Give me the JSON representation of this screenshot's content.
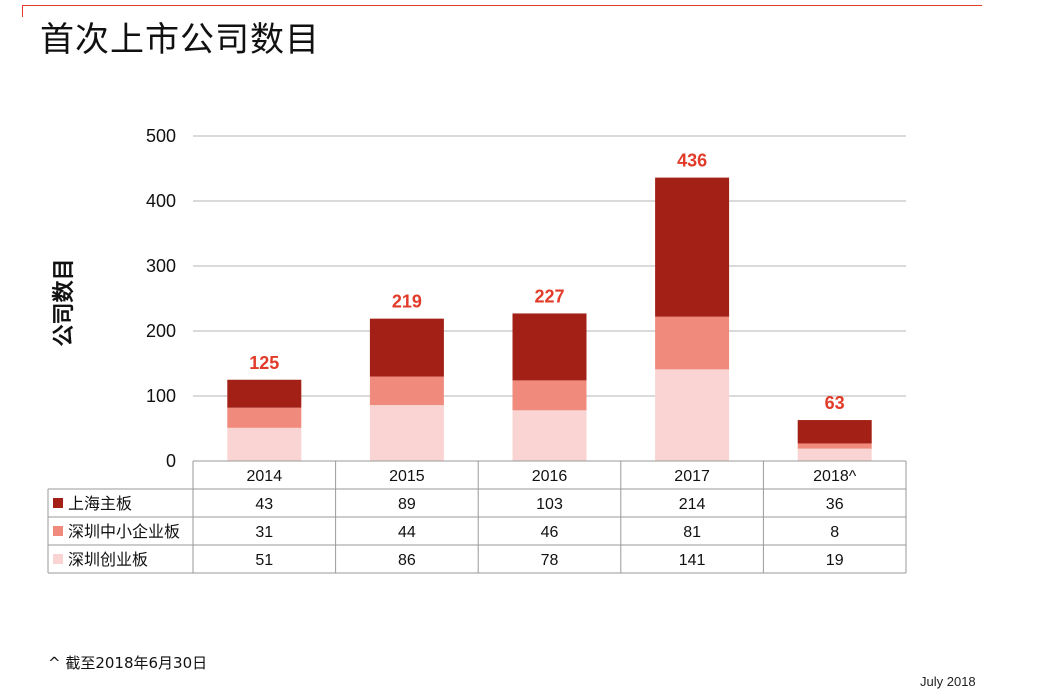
{
  "title": "首次上市公司数目",
  "footnote": "^ 截至2018年6月30日",
  "date": "July 2018",
  "chart_data": {
    "type": "bar",
    "stacked": true,
    "ylabel": "公司数目",
    "ylim": [
      0,
      500
    ],
    "yticks": [
      0,
      100,
      200,
      300,
      400,
      500
    ],
    "grid": true,
    "categories": [
      "2014",
      "2015",
      "2016",
      "2017",
      "2018^"
    ],
    "totals": [
      125,
      219,
      227,
      436,
      63
    ],
    "series": [
      {
        "name": "深圳创业板",
        "color": "#f9d4d2",
        "values": [
          51,
          86,
          78,
          141,
          19
        ]
      },
      {
        "name": "深圳中小企业板",
        "color": "#ef8a7d",
        "values": [
          31,
          44,
          46,
          81,
          8
        ]
      },
      {
        "name": "上海主板",
        "color": "#a32016",
        "values": [
          43,
          89,
          103,
          214,
          36
        ]
      }
    ],
    "table_rows": [
      "上海主板",
      "深圳中小企业板",
      "深圳创业板"
    ]
  }
}
